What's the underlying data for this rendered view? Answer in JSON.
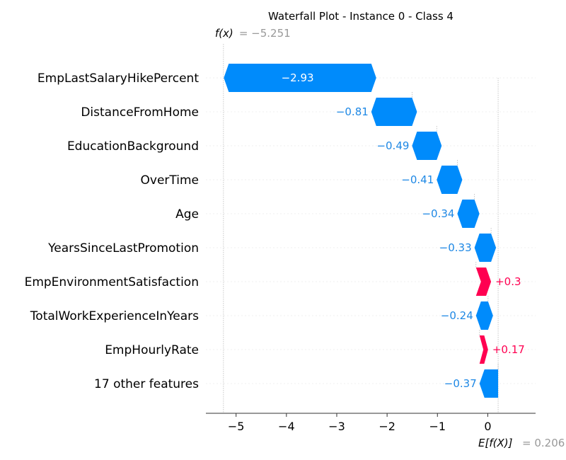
{
  "chart_data": {
    "type": "waterfall",
    "title": "Waterfall Plot - Instance 0 - Class 4",
    "fx_label": "f(x)",
    "fx_value": -5.251,
    "fx_value_text": "= −5.251",
    "base_label": "E[f(X)]",
    "base_value": 0.206,
    "base_value_text": "= 0.206",
    "xlim": [
      -5.6,
      0.95
    ],
    "x_ticks": [
      -5,
      -4,
      -3,
      -2,
      -1,
      0
    ],
    "x_tick_labels": [
      "−5",
      "−4",
      "−3",
      "−2",
      "−1",
      "0"
    ],
    "colors": {
      "negative": "#008bfb",
      "positive": "#ff0051",
      "negative_text": "#1e88e5",
      "positive_text": "#ff0051"
    },
    "features": [
      {
        "name": "EmpLastSalaryHikePercent",
        "value": -2.93,
        "label": "−2.93"
      },
      {
        "name": "DistanceFromHome",
        "value": -0.81,
        "label": "−0.81"
      },
      {
        "name": "EducationBackground",
        "value": -0.49,
        "label": "−0.49"
      },
      {
        "name": "OverTime",
        "value": -0.41,
        "label": "−0.41"
      },
      {
        "name": "Age",
        "value": -0.34,
        "label": "−0.34"
      },
      {
        "name": "YearsSinceLastPromotion",
        "value": -0.33,
        "label": "−0.33"
      },
      {
        "name": "EmpEnvironmentSatisfaction",
        "value": 0.3,
        "label": "+0.3"
      },
      {
        "name": "TotalWorkExperienceInYears",
        "value": -0.24,
        "label": "−0.24"
      },
      {
        "name": "EmpHourlyRate",
        "value": 0.17,
        "label": "+0.17"
      },
      {
        "name": "17 other features",
        "value": -0.37,
        "label": "−0.37"
      }
    ]
  }
}
